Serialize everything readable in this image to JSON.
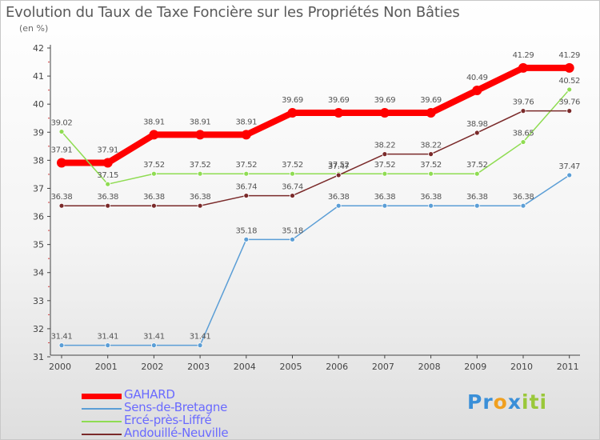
{
  "title": "Evolution du Taux de Taxe Foncière sur les Propriétés Non Bâties",
  "subtitle": "(en %)",
  "logo": {
    "text": "Proxiti",
    "letters": [
      {
        "ch": "P",
        "color": "#3a8fd8"
      },
      {
        "ch": "r",
        "color": "#3a8fd8"
      },
      {
        "ch": "o",
        "color": "#f0a020"
      },
      {
        "ch": "x",
        "color": "#3a8fd8"
      },
      {
        "ch": "i",
        "color": "#9ac83a"
      },
      {
        "ch": "t",
        "color": "#9ac83a"
      },
      {
        "ch": "i",
        "color": "#9ac83a"
      }
    ]
  },
  "chart_data": {
    "type": "line",
    "title": "Evolution du Taux de Taxe Foncière sur les Propriétés Non Bâties",
    "ylabel": "(en %)",
    "x": [
      "2000",
      "2001",
      "2002",
      "2003",
      "2004",
      "2005",
      "2006",
      "2007",
      "2008",
      "2009",
      "2010",
      "2011"
    ],
    "ylim": [
      31,
      42
    ],
    "yticks": [
      "31",
      "32",
      "33",
      "34",
      "35",
      "36",
      "37",
      "38",
      "39",
      "40",
      "41",
      "42"
    ],
    "grid": false,
    "legend_position": "bottom-left",
    "series": [
      {
        "name": "GAHARD",
        "color": "#ff0000",
        "values": [
          37.91,
          37.91,
          38.91,
          38.91,
          38.91,
          39.69,
          39.69,
          39.69,
          39.69,
          40.49,
          41.29,
          41.29
        ],
        "labels": [
          "37.91",
          "37.91",
          "38.91",
          "38.91",
          "38.91",
          "39.69",
          "39.69",
          "39.69",
          "39.69",
          "40.49",
          "41.29",
          "41.29"
        ]
      },
      {
        "name": "Sens-de-Bretagne",
        "color": "#5b9ed6",
        "values": [
          31.41,
          31.41,
          31.41,
          31.41,
          35.18,
          35.18,
          36.38,
          36.38,
          36.38,
          36.38,
          36.38,
          37.47
        ],
        "labels": [
          "31.41",
          "31.41",
          "31.41",
          "31.41",
          "35.18",
          "35.18",
          "36.38",
          "36.38",
          "36.38",
          "36.38",
          "36.38",
          "37.47"
        ]
      },
      {
        "name": "Ercé-près-Liffré",
        "color": "#8fdc52",
        "values": [
          39.02,
          37.15,
          37.52,
          37.52,
          37.52,
          37.52,
          37.52,
          37.52,
          37.52,
          37.52,
          38.65,
          40.52
        ],
        "labels": [
          "39.02",
          "37.15",
          "37.52",
          "37.52",
          "37.52",
          "37.52",
          "37.52",
          "37.52",
          "37.52",
          "37.52",
          "38.65",
          "40.52"
        ]
      },
      {
        "name": "Andouillé-Neuville",
        "color": "#7a2a2a",
        "values": [
          36.38,
          36.38,
          36.38,
          36.38,
          36.74,
          36.74,
          37.47,
          38.22,
          38.22,
          38.98,
          39.76,
          39.76
        ],
        "labels": [
          "36.38",
          "36.38",
          "36.38",
          "36.38",
          "36.74",
          "36.74",
          "37.47",
          "38.22",
          "38.22",
          "38.98",
          "39.76",
          "39.76"
        ]
      }
    ]
  }
}
